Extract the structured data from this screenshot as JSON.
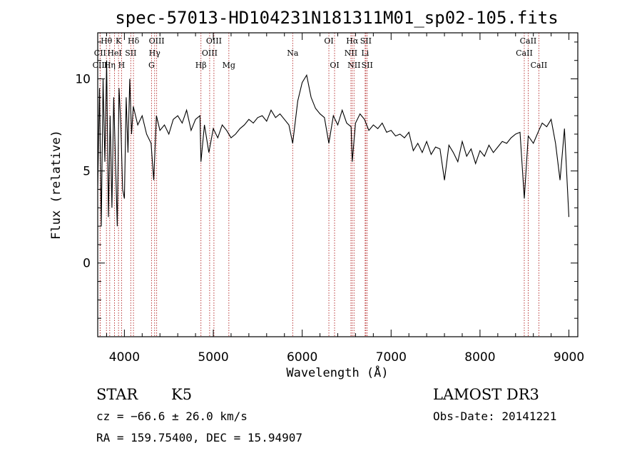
{
  "chart_data": {
    "type": "line",
    "title": "spec-57013-HD104231N181311M01_sp02-105.fits",
    "xlabel": "Wavelength (Å)",
    "ylabel": "Flux (relative)",
    "xlim": [
      3700,
      9100
    ],
    "ylim": [
      -4.0,
      12.5
    ],
    "x_ticks": [
      4000,
      5000,
      6000,
      7000,
      8000,
      9000
    ],
    "y_ticks": [
      0,
      5,
      10
    ],
    "x": [
      3700,
      3720,
      3740,
      3760,
      3780,
      3800,
      3820,
      3840,
      3860,
      3880,
      3900,
      3920,
      3940,
      3960,
      3980,
      4000,
      4020,
      4040,
      4060,
      4080,
      4100,
      4150,
      4200,
      4250,
      4300,
      4330,
      4360,
      4400,
      4450,
      4500,
      4550,
      4600,
      4650,
      4700,
      4750,
      4800,
      4850,
      4861,
      4900,
      4950,
      5000,
      5050,
      5100,
      5150,
      5200,
      5250,
      5300,
      5350,
      5400,
      5450,
      5500,
      5550,
      5600,
      5650,
      5700,
      5750,
      5800,
      5850,
      5893,
      5950,
      6000,
      6050,
      6100,
      6150,
      6200,
      6250,
      6300,
      6350,
      6400,
      6450,
      6500,
      6550,
      6563,
      6600,
      6650,
      6700,
      6750,
      6800,
      6850,
      6900,
      6950,
      7000,
      7050,
      7100,
      7150,
      7200,
      7250,
      7300,
      7350,
      7400,
      7450,
      7500,
      7550,
      7600,
      7650,
      7700,
      7750,
      7800,
      7850,
      7900,
      7950,
      8000,
      8050,
      8100,
      8150,
      8200,
      8250,
      8300,
      8350,
      8400,
      8450,
      8498,
      8542,
      8600,
      8662,
      8700,
      8750,
      8800,
      8850,
      8900,
      8950,
      9000
    ],
    "y": [
      4.0,
      9.5,
      2.0,
      10.0,
      5.5,
      11.0,
      2.5,
      8.0,
      3.0,
      9.0,
      5.5,
      2.0,
      9.5,
      7.5,
      4.0,
      3.5,
      9.0,
      6.0,
      10.0,
      7.0,
      8.5,
      7.5,
      8.0,
      7.0,
      6.5,
      4.5,
      8.0,
      7.2,
      7.5,
      7.0,
      7.8,
      8.0,
      7.6,
      8.3,
      7.2,
      7.8,
      8.0,
      5.5,
      7.5,
      6.0,
      7.3,
      6.8,
      7.5,
      7.2,
      6.8,
      7.0,
      7.3,
      7.5,
      7.8,
      7.6,
      7.9,
      8.0,
      7.7,
      8.3,
      7.9,
      8.1,
      7.8,
      7.5,
      6.5,
      8.8,
      9.8,
      10.2,
      9.0,
      8.4,
      8.1,
      7.9,
      6.5,
      8.0,
      7.5,
      8.3,
      7.6,
      7.4,
      5.5,
      7.6,
      8.1,
      7.8,
      7.2,
      7.5,
      7.3,
      7.6,
      7.1,
      7.2,
      6.9,
      7.0,
      6.8,
      7.1,
      6.1,
      6.5,
      6.0,
      6.6,
      5.9,
      6.3,
      6.2,
      4.5,
      6.4,
      6.0,
      5.5,
      6.6,
      5.8,
      6.2,
      5.4,
      6.1,
      5.8,
      6.4,
      6.0,
      6.3,
      6.6,
      6.5,
      6.8,
      7.0,
      7.1,
      3.5,
      6.9,
      6.5,
      7.2,
      7.6,
      7.4,
      7.8,
      6.5,
      4.5,
      7.3,
      2.5
    ],
    "line_markers": [
      {
        "name": "Hθ",
        "wavelength": 3798,
        "row": 1
      },
      {
        "name": "CII",
        "wavelength": 3727,
        "row": 2
      },
      {
        "name": "CIII",
        "wavelength": 3727,
        "row": 3
      },
      {
        "name": "K",
        "wavelength": 3934,
        "row": 1
      },
      {
        "name": "HeI",
        "wavelength": 3889,
        "row": 2
      },
      {
        "name": "Hη",
        "wavelength": 3835,
        "row": 3
      },
      {
        "name": "Hδ",
        "wavelength": 4102,
        "row": 1
      },
      {
        "name": "SII",
        "wavelength": 4072,
        "row": 2
      },
      {
        "name": "H",
        "wavelength": 3968,
        "row": 3
      },
      {
        "name": "OIII",
        "wavelength": 4363,
        "row": 1
      },
      {
        "name": "Hγ",
        "wavelength": 4340,
        "row": 2
      },
      {
        "name": "G",
        "wavelength": 4305,
        "row": 3
      },
      {
        "name": "Hβ",
        "wavelength": 4861,
        "row": 3
      },
      {
        "name": "OIII",
        "wavelength": 5007,
        "row": 1
      },
      {
        "name": "OIII",
        "wavelength": 4959,
        "row": 2
      },
      {
        "name": "Mg",
        "wavelength": 5175,
        "row": 3
      },
      {
        "name": "Na",
        "wavelength": 5893,
        "row": 2
      },
      {
        "name": "OI",
        "wavelength": 6300,
        "row": 1
      },
      {
        "name": "OI",
        "wavelength": 6364,
        "row": 3
      },
      {
        "name": "Hα",
        "wavelength": 6563,
        "row": 1
      },
      {
        "name": "NII",
        "wavelength": 6548,
        "row": 2
      },
      {
        "name": "NII",
        "wavelength": 6583,
        "row": 3
      },
      {
        "name": "SII",
        "wavelength": 6716,
        "row": 1
      },
      {
        "name": "Li",
        "wavelength": 6708,
        "row": 2
      },
      {
        "name": "SII",
        "wavelength": 6731,
        "row": 3
      },
      {
        "name": "CaII",
        "wavelength": 8542,
        "row": 1
      },
      {
        "name": "CaII",
        "wavelength": 8498,
        "row": 2
      },
      {
        "name": "CaII",
        "wavelength": 8662,
        "row": 3
      }
    ]
  },
  "info": {
    "object_class": "STAR",
    "subclass": "K5",
    "survey": "LAMOST DR3",
    "redshift_text": "cz = −66.6 ± 26.0 km/s",
    "obs_date_text": "Obs-Date: 20141221",
    "coords_text": "RA = 159.75400, DEC =  15.94907"
  },
  "colors": {
    "spectrum": "#000000",
    "marker_line": "#b22222",
    "axes": "#000000"
  }
}
